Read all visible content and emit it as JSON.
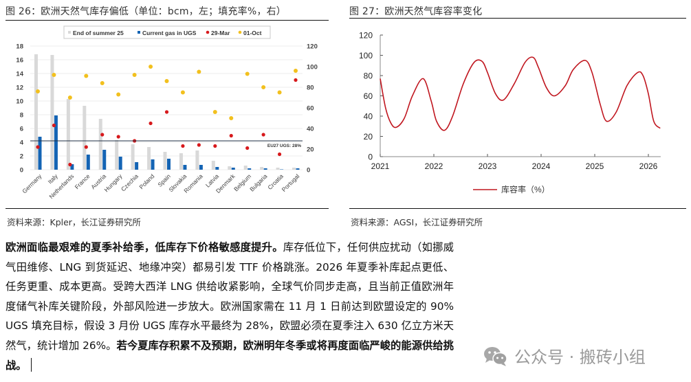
{
  "figure26": {
    "title": "图 26：欧洲天然气库存偏低（单位：bcm，左；填充率%，右）",
    "source": "资料来源：Kpler，长江证券研究所",
    "reference_label": "EU27 UGS: 28%"
  },
  "figure27": {
    "title": "图 27：欧洲天然气库容率变化",
    "source": "资料来源：AGSI，长江证券研究所",
    "legend_label": "库容率（%）"
  },
  "paragraph": {
    "bold_lead": "欧洲面临最艰难的夏季补给季，低库存下价格敏感度提升。",
    "body": "库存低位下，任何供应扰动（如挪威气田维修、LNG 到货延迟、地缘冲突）都易引发 TTF 价格跳涨。2026 年夏季补库起点更低、任务更重、成本更高。受跨大西洋 LNG 供给收紧影响，全球气价同步走高，且当前正值欧洲年度储气补库关键阶段，外部风险进一步放大。欧洲国家需在 11 月 1 日前达到欧盟设定的 90% UGS 填充目标，假设 3 月份 UGS 库存水平最终为 28%，欧盟必须在夏季注入 630 亿立方米天然气，统计增加 26%。",
    "bold_tail": "若今夏库存积累不及预期，欧洲明年冬季或将再度面临严峻的能源供给挑战。"
  },
  "watermark": {
    "icon": "wechat-icon",
    "text": "公众号 · 搬砖小组"
  },
  "colors": {
    "end_of_summer": "#d9d9d9",
    "current_gas": "#1464b4",
    "mar29": "#d7191c",
    "oct01": "#f2c01e",
    "line27": "#c0161f"
  },
  "chart_data": [
    {
      "type": "bar",
      "title": "图 26：欧洲天然气库存偏低（单位：bcm，左；填充率%，右）",
      "xlabel": "",
      "ylabel": "bcm",
      "ylabel_right": "填充率 %",
      "ylim": [
        0,
        18
      ],
      "ylim_right": [
        0,
        120
      ],
      "yticks": [
        0,
        2,
        4,
        6,
        8,
        10,
        12,
        14,
        16,
        18
      ],
      "yticks_right": [
        0,
        20,
        40,
        60,
        80,
        100,
        120
      ],
      "grid": true,
      "legend_position": "top",
      "categories": [
        "Germany",
        "Italy",
        "Netherlands",
        "France",
        "Austria",
        "Hungary",
        "Czechia",
        "Poland",
        "Spain",
        "Slovakia",
        "Romania",
        "Latvia",
        "Denmark",
        "Belgium",
        "Bulgaria",
        "Croatia",
        "Portugal"
      ],
      "series": [
        {
          "name": "End of summer 25",
          "type": "bar",
          "axis": "left",
          "values": [
            16.8,
            16.7,
            10.3,
            9.3,
            7.4,
            4.3,
            3.7,
            3.3,
            2.6,
            2.4,
            2.8,
            1.3,
            0.5,
            0.6,
            0.4,
            0.3,
            0.3
          ]
        },
        {
          "name": "Current gas in UGS",
          "type": "bar",
          "axis": "left",
          "values": [
            4.8,
            7.9,
            0.8,
            2.2,
            2.9,
            1.9,
            1.1,
            1.5,
            1.6,
            0.7,
            0.7,
            0.4,
            0.3,
            0.2,
            0.2,
            0.05,
            0.2
          ]
        },
        {
          "name": "29-Mar",
          "type": "scatter",
          "axis": "right",
          "values": [
            22,
            43,
            5,
            22,
            34,
            32,
            28,
            45,
            56,
            23,
            24,
            23,
            33,
            21,
            34,
            15,
            87
          ]
        },
        {
          "name": "01-Oct",
          "type": "scatter",
          "axis": "right",
          "values": [
            76,
            92,
            70,
            91,
            84,
            73,
            92,
            100,
            86,
            75,
            95,
            56,
            50,
            93,
            80,
            75,
            96
          ]
        }
      ],
      "annotations": [
        {
          "type": "hline",
          "axis": "right",
          "value": 28,
          "label": "EU27 UGS: 28%"
        }
      ]
    },
    {
      "type": "line",
      "title": "图 27：欧洲天然气库容率变化",
      "xlabel": "",
      "ylabel": "",
      "ylim": [
        0,
        120
      ],
      "yticks": [
        0,
        20,
        40,
        60,
        80,
        100,
        120
      ],
      "xticks": [
        "2021",
        "2022",
        "2023",
        "2024",
        "2025",
        "2026"
      ],
      "grid": false,
      "legend_position": "bottom",
      "series": [
        {
          "name": "库容率（%）",
          "x": [
            2021.0,
            2021.1,
            2021.2,
            2021.3,
            2021.45,
            2021.6,
            2021.8,
            2021.95,
            2022.05,
            2022.2,
            2022.35,
            2022.55,
            2022.75,
            2022.9,
            2023.0,
            2023.15,
            2023.3,
            2023.5,
            2023.7,
            2023.85,
            2023.95,
            2024.1,
            2024.25,
            2024.45,
            2024.6,
            2024.82,
            2024.95,
            2025.1,
            2025.22,
            2025.4,
            2025.6,
            2025.8,
            2025.9,
            2026.0,
            2026.1,
            2026.22
          ],
          "values": [
            77,
            48,
            33,
            29,
            38,
            60,
            77,
            55,
            35,
            26,
            40,
            72,
            93,
            94,
            83,
            62,
            56,
            72,
            93,
            98,
            88,
            68,
            60,
            70,
            86,
            95,
            83,
            52,
            35,
            44,
            70,
            83,
            80,
            62,
            35,
            28
          ]
        }
      ]
    }
  ]
}
